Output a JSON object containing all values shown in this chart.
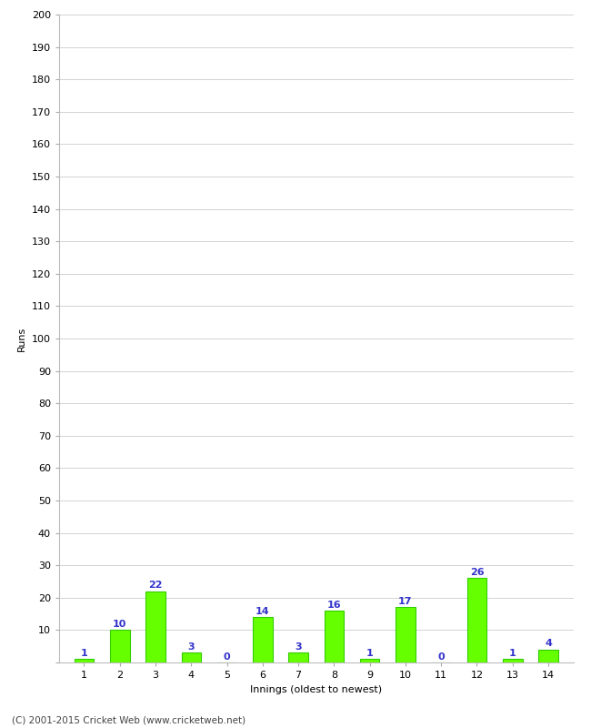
{
  "xlabel": "Innings (oldest to newest)",
  "ylabel": "Runs",
  "categories": [
    1,
    2,
    3,
    4,
    5,
    6,
    7,
    8,
    9,
    10,
    11,
    12,
    13,
    14
  ],
  "values": [
    1,
    10,
    22,
    3,
    0,
    14,
    3,
    16,
    1,
    17,
    0,
    26,
    1,
    4
  ],
  "bar_color": "#66ff00",
  "bar_edge_color": "#33cc00",
  "label_color": "#3333cc",
  "ylim": [
    0,
    200
  ],
  "yticks": [
    0,
    10,
    20,
    30,
    40,
    50,
    60,
    70,
    80,
    90,
    100,
    110,
    120,
    130,
    140,
    150,
    160,
    170,
    180,
    190,
    200
  ],
  "background_color": "#ffffff",
  "grid_color": "#cccccc",
  "footer": "(C) 2001-2015 Cricket Web (www.cricketweb.net)",
  "label_fontsize": 8,
  "axis_fontsize": 8,
  "ylabel_fontsize": 8,
  "xlabel_fontsize": 8,
  "footer_fontsize": 7.5
}
